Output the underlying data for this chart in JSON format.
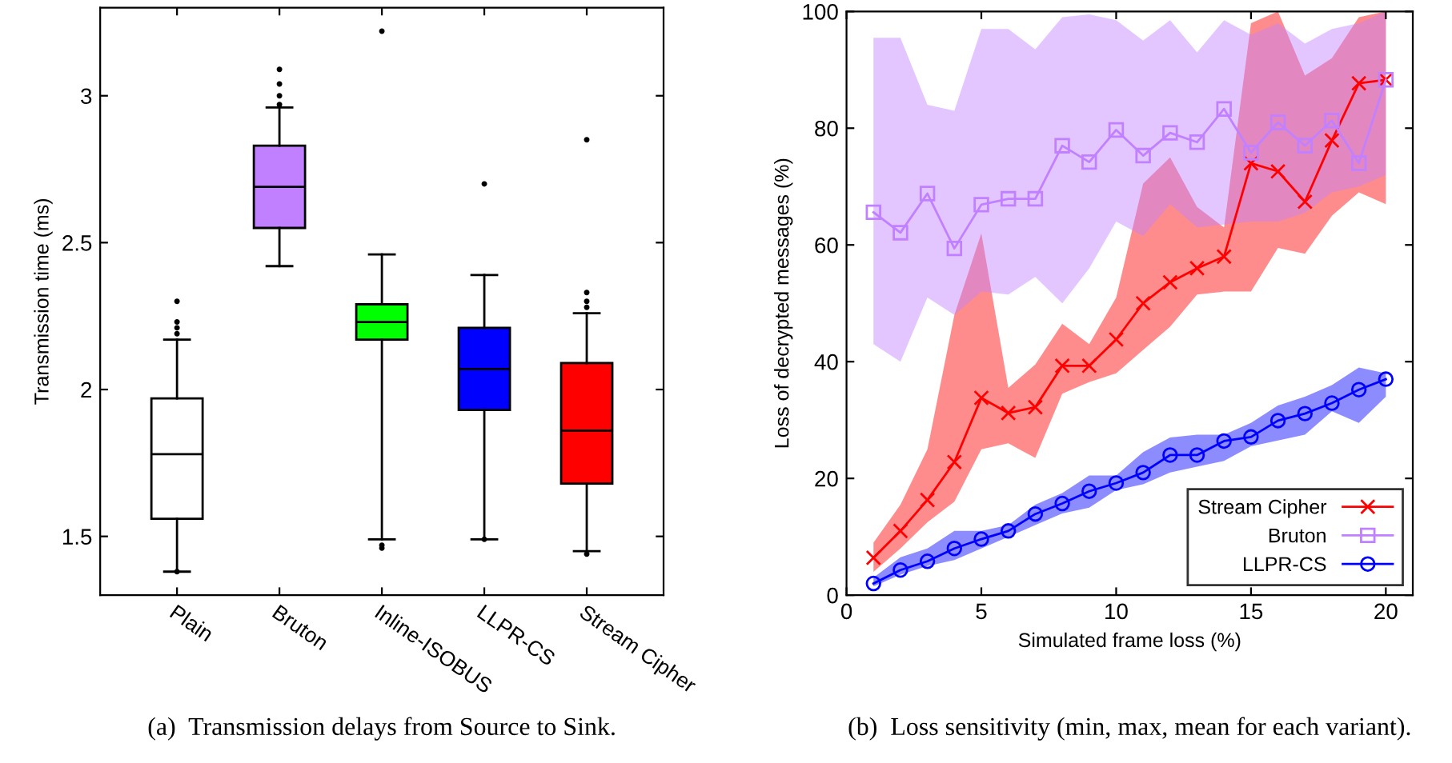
{
  "chart_data": [
    {
      "type": "box",
      "categories": [
        "Plain",
        "Bruton",
        "Inline-ISOBUS",
        "LLPR-CS",
        "Stream Cipher"
      ],
      "ylabel": "Transmission time (ms)",
      "ylim": [
        1.3,
        3.3
      ],
      "yticks": [
        1.5,
        2,
        2.5,
        3
      ],
      "grid": false,
      "colors": [
        "#ffffff",
        "#c080ff",
        "#00ff00",
        "#0000ff",
        "#ff0000"
      ],
      "boxes": [
        {
          "low": 1.38,
          "q1": 1.56,
          "median": 1.78,
          "q3": 1.97,
          "high": 2.17,
          "outliers": [
            1.38,
            2.19,
            2.21,
            2.23,
            2.3
          ]
        },
        {
          "low": 2.42,
          "q1": 2.55,
          "median": 2.69,
          "q3": 2.83,
          "high": 2.96,
          "outliers": [
            2.97,
            3.0,
            3.04,
            3.09
          ]
        },
        {
          "low": 1.49,
          "q1": 2.17,
          "median": 2.23,
          "q3": 2.29,
          "high": 2.46,
          "outliers": [
            1.46,
            1.47,
            3.22
          ]
        },
        {
          "low": 1.49,
          "q1": 1.93,
          "median": 2.07,
          "q3": 2.21,
          "high": 2.39,
          "outliers": [
            1.49,
            2.7
          ]
        },
        {
          "low": 1.45,
          "q1": 1.68,
          "median": 1.86,
          "q3": 2.09,
          "high": 2.26,
          "outliers": [
            1.44,
            2.28,
            2.3,
            2.33,
            2.85
          ]
        }
      ],
      "annotations": [
        "(a)  Transmission delays from Source to Sink."
      ]
    },
    {
      "type": "line",
      "xlabel": "Simulated frame loss (%)",
      "ylabel": "Loss of decrypted messages (%)",
      "xlim": [
        0,
        21
      ],
      "ylim": [
        0,
        100
      ],
      "xticks": [
        0,
        5,
        10,
        15,
        20
      ],
      "yticks": [
        0,
        20,
        40,
        60,
        80,
        100
      ],
      "grid": false,
      "legend": "bottom right",
      "line_style": "solid",
      "x": [
        1,
        2,
        3,
        4,
        5,
        6,
        7,
        8,
        9,
        10,
        11,
        12,
        13,
        14,
        15,
        16,
        17,
        18,
        19,
        20
      ],
      "series": [
        {
          "name": "Stream Cipher",
          "color": "#ff0000",
          "marker": "cross",
          "values": [
            6.4,
            11,
            16.3,
            22.8,
            33.8,
            31.2,
            32.2,
            39.3,
            39.3,
            43.8,
            50,
            53.6,
            56,
            58,
            74,
            72.6,
            67.4,
            77.9,
            87.7,
            88.3
          ],
          "lower": [
            4,
            8,
            12.5,
            16,
            25,
            26,
            23.5,
            34.5,
            36.5,
            38,
            42,
            46,
            51.5,
            52,
            52,
            59.5,
            58.5,
            65,
            69,
            67
          ],
          "upper": [
            9,
            15.5,
            25,
            48,
            62,
            35.5,
            39.5,
            46.5,
            43,
            51,
            70.5,
            75,
            66.5,
            63,
            98,
            100,
            89,
            92,
            99,
            100
          ]
        },
        {
          "name": "Bruton",
          "color": "#c080ff",
          "marker": "square",
          "values": [
            65.6,
            62.1,
            68.8,
            59.4,
            66.9,
            67.9,
            67.9,
            77,
            74.2,
            79.7,
            75.3,
            79.2,
            77.6,
            83.3,
            75.8,
            81,
            77,
            81.3,
            74,
            88.3
          ],
          "lower": [
            43,
            40,
            51,
            48,
            52,
            51.5,
            54.5,
            50,
            56,
            64,
            61.5,
            67,
            63,
            63.5,
            64,
            64,
            65.5,
            69,
            70,
            72
          ],
          "upper": [
            95.5,
            95.5,
            84,
            83,
            97,
            97,
            93.5,
            99,
            99.5,
            98.5,
            95,
            98.5,
            93,
            98.5,
            96,
            98,
            94.5,
            97,
            98,
            100
          ]
        },
        {
          "name": "LLPR-CS",
          "color": "#0000ff",
          "marker": "circle",
          "values": [
            2,
            4.3,
            5.8,
            8,
            9.6,
            11,
            13.9,
            15.7,
            17.8,
            19.2,
            21,
            24,
            24,
            26.4,
            27.1,
            29.9,
            31.1,
            32.9,
            35.2,
            37
          ],
          "lower": [
            1.5,
            3.5,
            5,
            6,
            8,
            10,
            12,
            14,
            15,
            18,
            19,
            21,
            22,
            23,
            25.5,
            26.5,
            27.5,
            31.5,
            29.5,
            34
          ],
          "upper": [
            3,
            6.5,
            8,
            11,
            11,
            12,
            15.5,
            17.5,
            20.5,
            20.5,
            24.5,
            27,
            27.5,
            27.5,
            29.5,
            32.5,
            34,
            36,
            39,
            38
          ]
        }
      ],
      "annotations": [
        "(b)  Loss sensitivity (min, max, mean for each variant)."
      ]
    }
  ]
}
